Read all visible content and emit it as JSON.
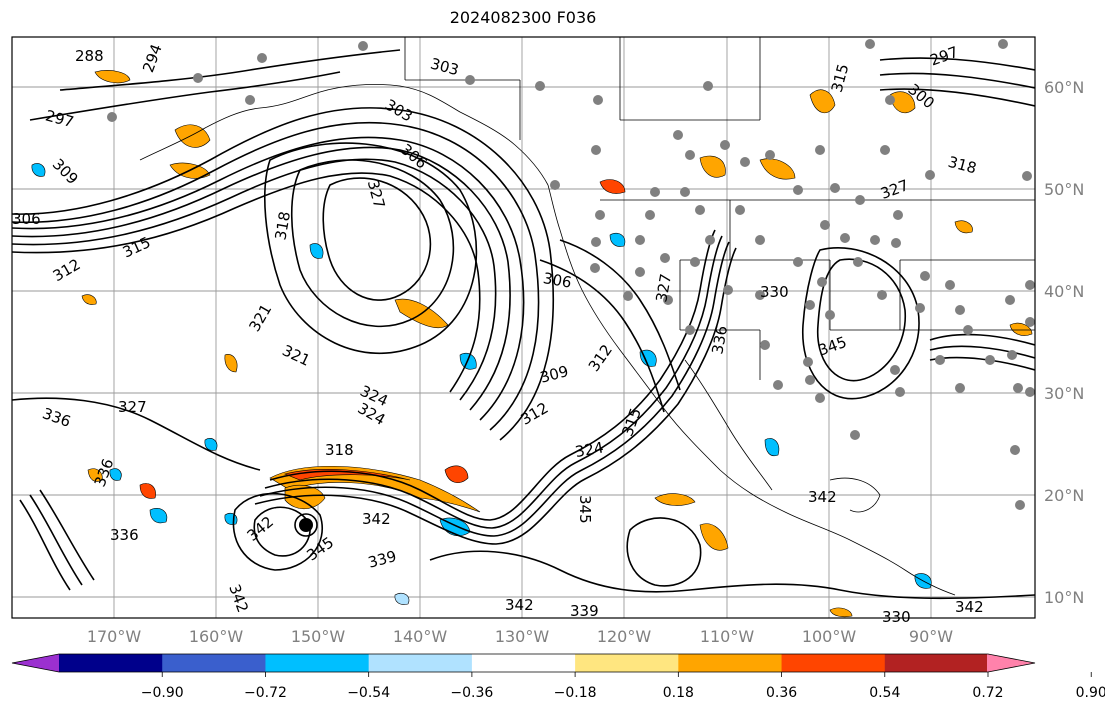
{
  "title": "2024082300 F036",
  "latitude_labels": [
    "60°N",
    "50°N",
    "40°N",
    "30°N",
    "20°N",
    "10°N"
  ],
  "longitude_labels": [
    "170°W",
    "160°W",
    "150°W",
    "140°W",
    "130°W",
    "120°W",
    "110°W",
    "100°W",
    "90°W"
  ],
  "colorbar": {
    "ticks": [
      "−0.90",
      "−0.72",
      "−0.54",
      "−0.36",
      "−0.18",
      "0.18",
      "0.36",
      "0.54",
      "0.72",
      "0.90"
    ],
    "colors": [
      "#9b30d0",
      "#00008b",
      "#3a5fcd",
      "#00bfff",
      "#b0e2ff",
      "#ffffff",
      "#ffe680",
      "#ffa500",
      "#ff4500",
      "#b22222",
      "#ff82ab"
    ]
  },
  "contour_labels": [
    "288",
    "294",
    "297",
    "309",
    "306",
    "312",
    "315",
    "303",
    "303",
    "306",
    "327",
    "318",
    "321",
    "321",
    "324",
    "324",
    "318",
    "327",
    "336",
    "336",
    "342",
    "345",
    "342",
    "342",
    "336",
    "339",
    "342",
    "339",
    "306",
    "309",
    "312",
    "312",
    "315",
    "324",
    "345",
    "327",
    "330",
    "336",
    "342",
    "345",
    "327",
    "315",
    "300",
    "297",
    "318",
    "342",
    "330"
  ]
}
